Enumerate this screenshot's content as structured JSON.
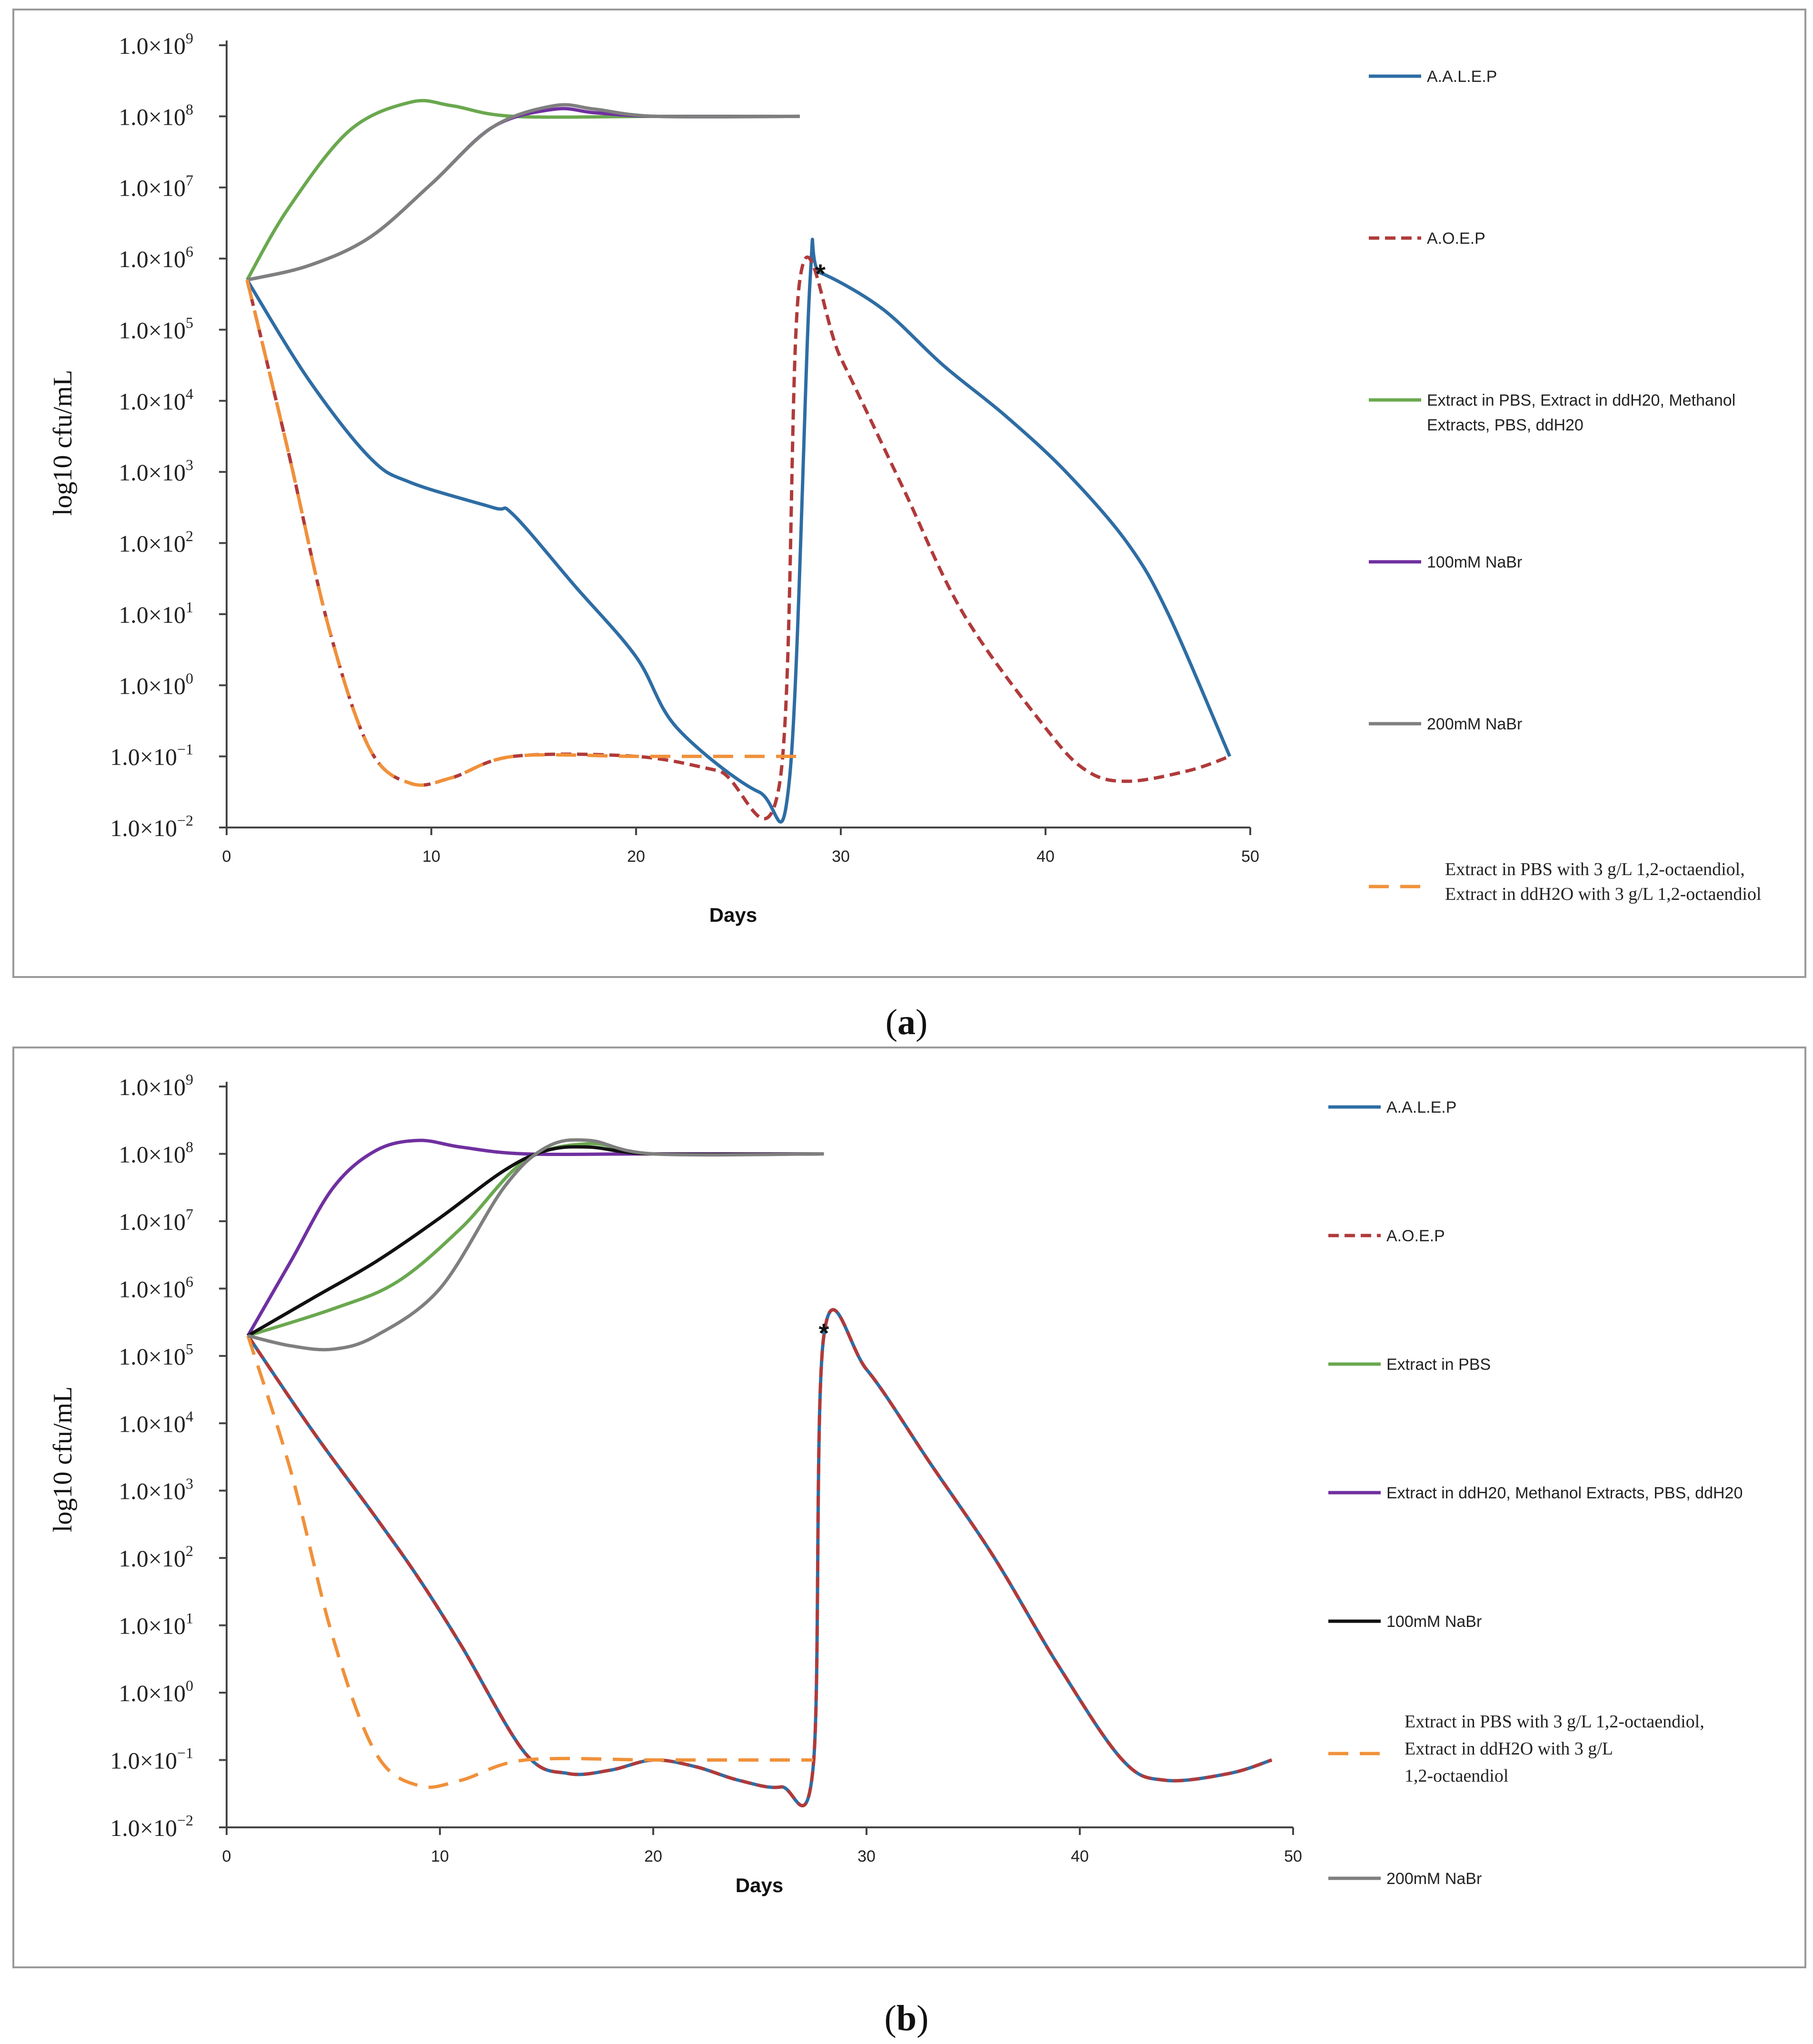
{
  "chart_data": [
    {
      "type": "line",
      "panel": "(a)",
      "panel_letter": "a",
      "xlabel": "Days",
      "ylabel": "log10 cfu/mL",
      "xlim": [
        0,
        50
      ],
      "x_ticks": [
        "0",
        "10",
        "20",
        "30",
        "40",
        "50"
      ],
      "y_tick_mantissa": "1.0×10",
      "y_exponents": [
        "−2",
        "−1",
        "0",
        "1",
        "2",
        "3",
        "4",
        "5",
        "6",
        "7",
        "8",
        "9"
      ],
      "ylim_log10": [
        -2,
        9
      ],
      "annotation": "*",
      "annotation_at": [
        29,
        5.78
      ],
      "series": [
        {
          "name": "A.A.L.E.P",
          "legend": [
            "A.A.L.E.P"
          ],
          "color": "#2e6da4",
          "dash": "solid",
          "points": [
            [
              1,
              5.7
            ],
            [
              4,
              4.3
            ],
            [
              7,
              3.2
            ],
            [
              9,
              2.85
            ],
            [
              13,
              2.5
            ],
            [
              14,
              2.4
            ],
            [
              17,
              1.4
            ],
            [
              20,
              0.4
            ],
            [
              22,
              -0.6
            ],
            [
              26,
              -1.5
            ],
            [
              27.5,
              -1.3
            ],
            [
              28.5,
              5.7
            ],
            [
              29,
              5.8
            ],
            [
              32,
              5.3
            ],
            [
              35,
              4.5
            ],
            [
              38,
              3.8
            ],
            [
              41,
              3.0
            ],
            [
              44,
              2.0
            ],
            [
              46,
              1.0
            ],
            [
              49,
              -1.0
            ]
          ]
        },
        {
          "name": "A.O.E.P",
          "legend": [
            "A.O.E.P"
          ],
          "color": "#b03a3a",
          "dash": "dashed",
          "points": [
            [
              1,
              5.7
            ],
            [
              3,
              3.3
            ],
            [
              5,
              0.8
            ],
            [
              7,
              -0.9
            ],
            [
              9,
              -1.38
            ],
            [
              11,
              -1.3
            ],
            [
              14,
              -1.0
            ],
            [
              20,
              -1.0
            ],
            [
              24,
              -1.2
            ],
            [
              27,
              -1.4
            ],
            [
              28,
              5.7
            ],
            [
              30,
              4.6
            ],
            [
              33,
              2.8
            ],
            [
              36,
              1.0
            ],
            [
              40,
              -0.6
            ],
            [
              42,
              -1.2
            ],
            [
              44,
              -1.35
            ],
            [
              47,
              -1.2
            ],
            [
              49,
              -1.0
            ]
          ]
        },
        {
          "name": "Extract in PBS, Extract in ddH20, Methanol Extracts, PBS, ddH20",
          "legend": [
            "Extract in PBS, Extract in ddH20, Methanol",
            "Extracts, PBS, ddH20"
          ],
          "color": "#6aa84f",
          "dash": "solid",
          "points": [
            [
              1,
              5.7
            ],
            [
              3,
              6.7
            ],
            [
              6,
              7.8
            ],
            [
              9,
              8.2
            ],
            [
              11,
              8.15
            ],
            [
              14,
              8.0
            ],
            [
              21,
              8.0
            ],
            [
              28,
              8.0
            ]
          ]
        },
        {
          "name": "100mM NaBr",
          "legend": [
            "100mM NaBr"
          ],
          "color": "#7030a0",
          "dash": "solid",
          "points": [
            [
              1,
              5.7
            ],
            [
              4,
              5.9
            ],
            [
              7,
              6.3
            ],
            [
              10,
              7.05
            ],
            [
              13,
              7.85
            ],
            [
              16,
              8.1
            ],
            [
              18,
              8.05
            ],
            [
              21,
              8.0
            ],
            [
              28,
              8.0
            ]
          ]
        },
        {
          "name": "200mM NaBr",
          "legend": [
            "200mM NaBr"
          ],
          "color": "#7f7f7f",
          "dash": "solid",
          "points": [
            [
              1,
              5.7
            ],
            [
              4,
              5.9
            ],
            [
              7,
              6.3
            ],
            [
              10,
              7.05
            ],
            [
              13,
              7.85
            ],
            [
              16,
              8.15
            ],
            [
              18,
              8.1
            ],
            [
              21,
              8.0
            ],
            [
              28,
              8.0
            ]
          ]
        },
        {
          "name": "Extract in PBS with 3 g/L 1,2-octaendiol, Extract in ddH2O with 3 g/L 1,2-octaendiol",
          "legend": [
            "Extract in PBS with 3 g/L 1,2-octaendiol,",
            "Extract in ddH2O with 3 g/L 1,2-octaendiol"
          ],
          "color": "#f0913a",
          "dash": "longdash",
          "points": [
            [
              1,
              5.7
            ],
            [
              3,
              3.3
            ],
            [
              5,
              0.8
            ],
            [
              7,
              -0.9
            ],
            [
              9,
              -1.38
            ],
            [
              11,
              -1.3
            ],
            [
              14,
              -1.0
            ],
            [
              20,
              -1.0
            ],
            [
              24,
              -1.0
            ],
            [
              28,
              -1.0
            ]
          ]
        }
      ]
    },
    {
      "type": "line",
      "panel": "(b)",
      "panel_letter": "b",
      "xlabel": "Days",
      "ylabel": "log10 cfu/mL",
      "xlim": [
        0,
        50
      ],
      "x_ticks": [
        "0",
        "10",
        "20",
        "30",
        "40",
        "50"
      ],
      "y_tick_mantissa": "1.0×10",
      "y_exponents": [
        "−2",
        "−1",
        "0",
        "1",
        "2",
        "3",
        "4",
        "5",
        "6",
        "7",
        "8",
        "9"
      ],
      "ylim_log10": [
        -2,
        9
      ],
      "annotation": "*",
      "annotation_at": [
        28,
        5.33
      ],
      "series": [
        {
          "name": "A.A.L.E.P",
          "legend": [
            "A.A.L.E.P"
          ],
          "color": "#2e6da4",
          "dash": "solid",
          "points": [
            [
              1,
              5.3
            ],
            [
              4,
              3.9
            ],
            [
              7,
              2.6
            ],
            [
              9,
              1.7
            ],
            [
              11,
              0.7
            ],
            [
              14,
              -0.9
            ],
            [
              16,
              -1.2
            ],
            [
              18,
              -1.15
            ],
            [
              20,
              -1.0
            ],
            [
              22,
              -1.1
            ],
            [
              24,
              -1.3
            ],
            [
              26,
              -1.4
            ],
            [
              27.5,
              -1.1
            ],
            [
              28,
              5.3
            ],
            [
              30,
              4.8
            ],
            [
              33,
              3.4
            ],
            [
              36,
              2.0
            ],
            [
              39,
              0.4
            ],
            [
              42,
              -1.0
            ],
            [
              44,
              -1.3
            ],
            [
              47,
              -1.2
            ],
            [
              49,
              -1.0
            ]
          ]
        },
        {
          "name": "A.O.E.P",
          "legend": [
            "A.O.E.P"
          ],
          "color": "#b03a3a",
          "dash": "dashed",
          "points": [
            [
              1,
              5.3
            ],
            [
              4,
              3.9
            ],
            [
              7,
              2.6
            ],
            [
              9,
              1.7
            ],
            [
              11,
              0.7
            ],
            [
              14,
              -0.9
            ],
            [
              16,
              -1.2
            ],
            [
              18,
              -1.15
            ],
            [
              20,
              -1.0
            ],
            [
              22,
              -1.1
            ],
            [
              24,
              -1.3
            ],
            [
              26,
              -1.4
            ],
            [
              27.5,
              -1.1
            ],
            [
              28,
              5.3
            ],
            [
              30,
              4.8
            ],
            [
              33,
              3.4
            ],
            [
              36,
              2.0
            ],
            [
              39,
              0.4
            ],
            [
              42,
              -1.0
            ],
            [
              44,
              -1.3
            ],
            [
              47,
              -1.2
            ],
            [
              49,
              -1.0
            ]
          ]
        },
        {
          "name": "Extract in PBS",
          "legend": [
            "Extract in PBS"
          ],
          "color": "#6aa84f",
          "dash": "solid",
          "points": [
            [
              1,
              5.3
            ],
            [
              5,
              5.7
            ],
            [
              8,
              6.1
            ],
            [
              11,
              6.9
            ],
            [
              14,
              7.9
            ],
            [
              17,
              8.15
            ],
            [
              20,
              8.0
            ],
            [
              28,
              8.0
            ]
          ]
        },
        {
          "name": "Extract in ddH20, Methanol Extracts, PBS, ddH20",
          "legend": [
            "Extract in ddH20, Methanol Extracts, PBS, ddH20"
          ],
          "color": "#7030a0",
          "dash": "solid",
          "points": [
            [
              1,
              5.3
            ],
            [
              3,
              6.4
            ],
            [
              5,
              7.5
            ],
            [
              7,
              8.05
            ],
            [
              9,
              8.2
            ],
            [
              11,
              8.1
            ],
            [
              14,
              8.0
            ],
            [
              20,
              8.0
            ],
            [
              28,
              8.0
            ]
          ]
        },
        {
          "name": "100mM NaBr",
          "legend": [
            "100mM NaBr"
          ],
          "color": "#111111",
          "dash": "solid",
          "points": [
            [
              1,
              5.3
            ],
            [
              4,
              5.85
            ],
            [
              7,
              6.4
            ],
            [
              10,
              7.05
            ],
            [
              13,
              7.75
            ],
            [
              15,
              8.05
            ],
            [
              17,
              8.1
            ],
            [
              20,
              8.0
            ],
            [
              28,
              8.0
            ]
          ]
        },
        {
          "name": "Extract in PBS with 3 g/L 1,2-octaendiol, Extract in ddH2O with 3 g/L 1,2-octaendiol",
          "legend": [
            "Extract in PBS with 3 g/L 1,2-octaendiol,",
            "Extract in ddH2O with 3 g/L",
            "1,2-octaendiol"
          ],
          "color": "#f0913a",
          "dash": "longdash",
          "points": [
            [
              1,
              5.3
            ],
            [
              3,
              3.3
            ],
            [
              5,
              0.8
            ],
            [
              7,
              -0.9
            ],
            [
              9,
              -1.38
            ],
            [
              11,
              -1.3
            ],
            [
              14,
              -1.0
            ],
            [
              20,
              -1.0
            ],
            [
              24,
              -1.0
            ],
            [
              27.5,
              -1.0
            ]
          ]
        },
        {
          "name": "200mM NaBr",
          "legend": [
            "200mM NaBr"
          ],
          "color": "#7f7f7f",
          "dash": "solid",
          "points": [
            [
              1,
              5.3
            ],
            [
              3,
              5.15
            ],
            [
              5,
              5.1
            ],
            [
              7,
              5.3
            ],
            [
              10,
              6.0
            ],
            [
              13,
              7.5
            ],
            [
              15,
              8.1
            ],
            [
              17,
              8.2
            ],
            [
              20,
              8.0
            ],
            [
              28,
              8.0
            ]
          ]
        }
      ]
    }
  ]
}
